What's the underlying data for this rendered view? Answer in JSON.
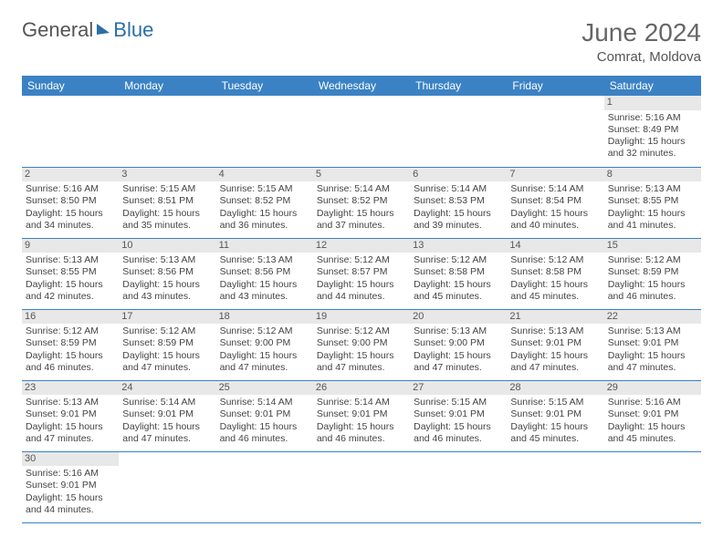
{
  "brand": {
    "part1": "General",
    "part2": "Blue"
  },
  "title": "June 2024",
  "location": "Comrat, Moldova",
  "colors": {
    "header_bg": "#3b82c4",
    "header_text": "#ffffff",
    "border": "#3b82c4",
    "daynum_bg": "#e8e8e8",
    "text": "#444444",
    "brand_blue": "#2b6fa8",
    "background": "#ffffff"
  },
  "typography": {
    "title_fontsize": 28,
    "location_fontsize": 15,
    "header_fontsize": 12,
    "cell_fontsize": 10.5
  },
  "weekdays": [
    "Sunday",
    "Monday",
    "Tuesday",
    "Wednesday",
    "Thursday",
    "Friday",
    "Saturday"
  ],
  "grid": {
    "rows": 6,
    "cols": 7,
    "first_day_col": 6
  },
  "days": [
    {
      "n": 1,
      "sunrise": "5:16 AM",
      "sunset": "8:49 PM",
      "daylight": "15 hours and 32 minutes."
    },
    {
      "n": 2,
      "sunrise": "5:16 AM",
      "sunset": "8:50 PM",
      "daylight": "15 hours and 34 minutes."
    },
    {
      "n": 3,
      "sunrise": "5:15 AM",
      "sunset": "8:51 PM",
      "daylight": "15 hours and 35 minutes."
    },
    {
      "n": 4,
      "sunrise": "5:15 AM",
      "sunset": "8:52 PM",
      "daylight": "15 hours and 36 minutes."
    },
    {
      "n": 5,
      "sunrise": "5:14 AM",
      "sunset": "8:52 PM",
      "daylight": "15 hours and 37 minutes."
    },
    {
      "n": 6,
      "sunrise": "5:14 AM",
      "sunset": "8:53 PM",
      "daylight": "15 hours and 39 minutes."
    },
    {
      "n": 7,
      "sunrise": "5:14 AM",
      "sunset": "8:54 PM",
      "daylight": "15 hours and 40 minutes."
    },
    {
      "n": 8,
      "sunrise": "5:13 AM",
      "sunset": "8:55 PM",
      "daylight": "15 hours and 41 minutes."
    },
    {
      "n": 9,
      "sunrise": "5:13 AM",
      "sunset": "8:55 PM",
      "daylight": "15 hours and 42 minutes."
    },
    {
      "n": 10,
      "sunrise": "5:13 AM",
      "sunset": "8:56 PM",
      "daylight": "15 hours and 43 minutes."
    },
    {
      "n": 11,
      "sunrise": "5:13 AM",
      "sunset": "8:56 PM",
      "daylight": "15 hours and 43 minutes."
    },
    {
      "n": 12,
      "sunrise": "5:12 AM",
      "sunset": "8:57 PM",
      "daylight": "15 hours and 44 minutes."
    },
    {
      "n": 13,
      "sunrise": "5:12 AM",
      "sunset": "8:58 PM",
      "daylight": "15 hours and 45 minutes."
    },
    {
      "n": 14,
      "sunrise": "5:12 AM",
      "sunset": "8:58 PM",
      "daylight": "15 hours and 45 minutes."
    },
    {
      "n": 15,
      "sunrise": "5:12 AM",
      "sunset": "8:59 PM",
      "daylight": "15 hours and 46 minutes."
    },
    {
      "n": 16,
      "sunrise": "5:12 AM",
      "sunset": "8:59 PM",
      "daylight": "15 hours and 46 minutes."
    },
    {
      "n": 17,
      "sunrise": "5:12 AM",
      "sunset": "8:59 PM",
      "daylight": "15 hours and 47 minutes."
    },
    {
      "n": 18,
      "sunrise": "5:12 AM",
      "sunset": "9:00 PM",
      "daylight": "15 hours and 47 minutes."
    },
    {
      "n": 19,
      "sunrise": "5:12 AM",
      "sunset": "9:00 PM",
      "daylight": "15 hours and 47 minutes."
    },
    {
      "n": 20,
      "sunrise": "5:13 AM",
      "sunset": "9:00 PM",
      "daylight": "15 hours and 47 minutes."
    },
    {
      "n": 21,
      "sunrise": "5:13 AM",
      "sunset": "9:01 PM",
      "daylight": "15 hours and 47 minutes."
    },
    {
      "n": 22,
      "sunrise": "5:13 AM",
      "sunset": "9:01 PM",
      "daylight": "15 hours and 47 minutes."
    },
    {
      "n": 23,
      "sunrise": "5:13 AM",
      "sunset": "9:01 PM",
      "daylight": "15 hours and 47 minutes."
    },
    {
      "n": 24,
      "sunrise": "5:14 AM",
      "sunset": "9:01 PM",
      "daylight": "15 hours and 47 minutes."
    },
    {
      "n": 25,
      "sunrise": "5:14 AM",
      "sunset": "9:01 PM",
      "daylight": "15 hours and 46 minutes."
    },
    {
      "n": 26,
      "sunrise": "5:14 AM",
      "sunset": "9:01 PM",
      "daylight": "15 hours and 46 minutes."
    },
    {
      "n": 27,
      "sunrise": "5:15 AM",
      "sunset": "9:01 PM",
      "daylight": "15 hours and 46 minutes."
    },
    {
      "n": 28,
      "sunrise": "5:15 AM",
      "sunset": "9:01 PM",
      "daylight": "15 hours and 45 minutes."
    },
    {
      "n": 29,
      "sunrise": "5:16 AM",
      "sunset": "9:01 PM",
      "daylight": "15 hours and 45 minutes."
    },
    {
      "n": 30,
      "sunrise": "5:16 AM",
      "sunset": "9:01 PM",
      "daylight": "15 hours and 44 minutes."
    }
  ],
  "labels": {
    "sunrise": "Sunrise:",
    "sunset": "Sunset:",
    "daylight": "Daylight:"
  }
}
